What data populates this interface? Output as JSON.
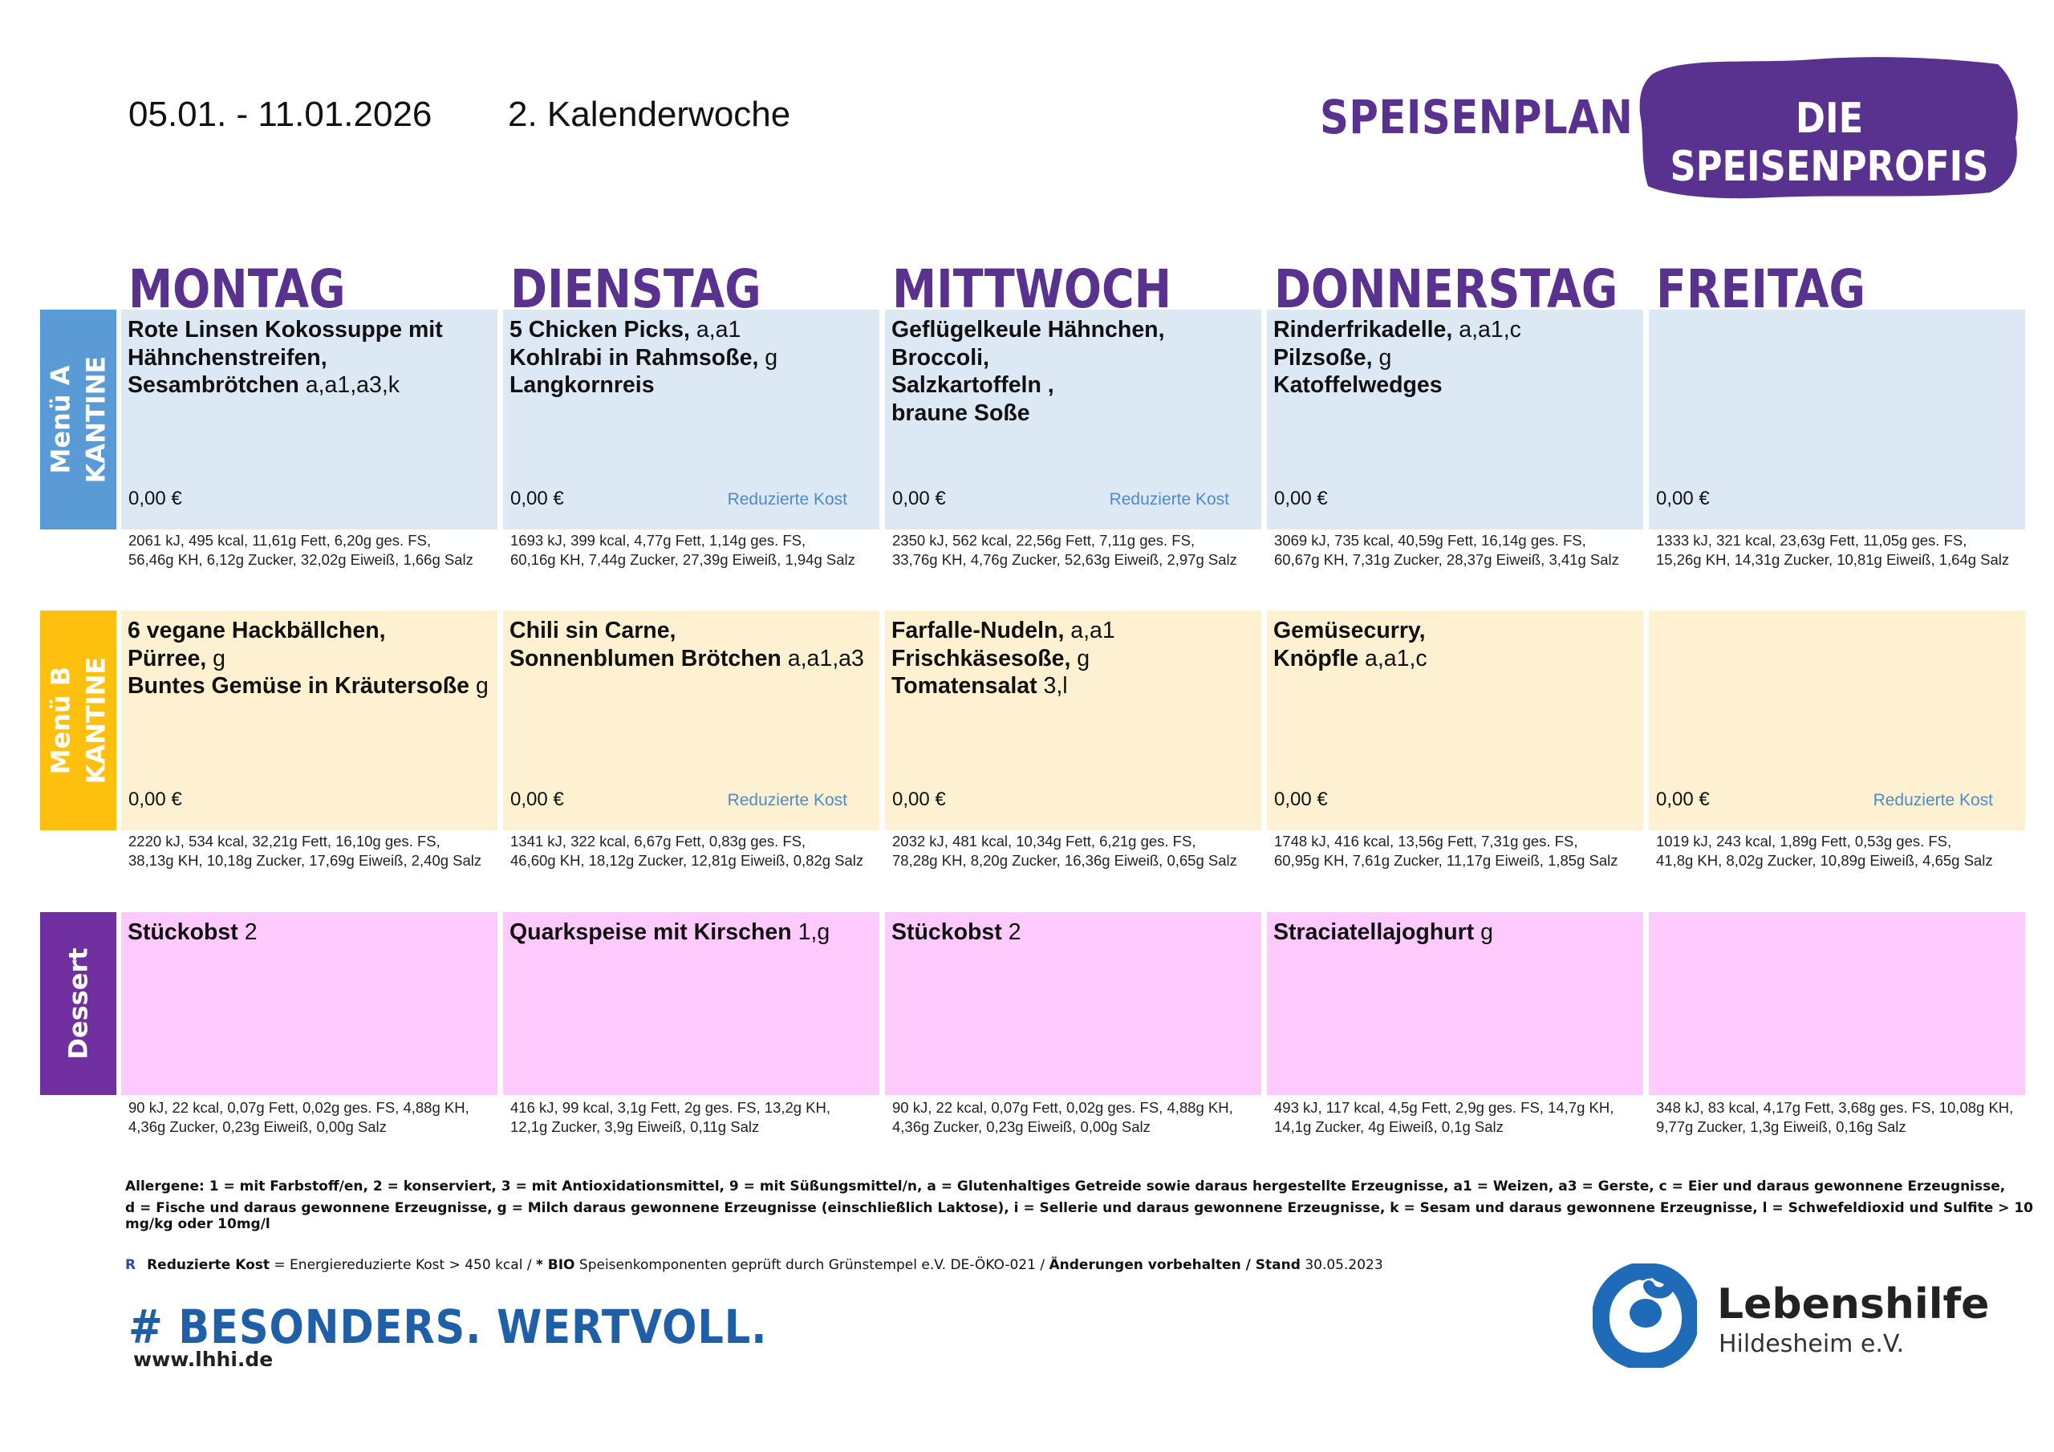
{
  "header": {
    "date_range": "05.01. - 11.01.2026",
    "week": "2. Kalenderwoche",
    "title": "SPEISENPLAN",
    "brand": "DIE SPEISENPROFIS"
  },
  "days": [
    "MONTAG",
    "DIENSTAG",
    "MITTWOCH",
    "DONNERSTAG",
    "FREITAG"
  ],
  "rows": {
    "menu_a": {
      "line1": "Menü A",
      "line2": "KANTINE",
      "color": "#5b9bd5"
    },
    "menu_b": {
      "line1": "Menü B",
      "line2": "KANTINE",
      "color": "#fdc00f"
    },
    "dessert": {
      "line1": "Dessert",
      "color": "#7030a0"
    }
  },
  "menu_a": [
    {
      "lines": [
        {
          "dish": "Rote Linsen Kokossuppe mit",
          "al": ""
        },
        {
          "dish": "Hähnchenstreifen,",
          "al": ""
        },
        {
          "dish": "Sesambrötchen",
          "al": " a,a1,a3,k"
        }
      ],
      "price": "0,00 €",
      "reduced": "",
      "nut1": "2061 kJ, 495 kcal, 11,61g Fett, 6,20g ges. FS,",
      "nut2": "56,46g KH, 6,12g Zucker, 32,02g Eiweiß, 1,66g Salz"
    },
    {
      "lines": [
        {
          "dish": "5 Chicken Picks,",
          "al": " a,a1"
        },
        {
          "dish": "Kohlrabi in Rahmsoße,",
          "al": " g"
        },
        {
          "dish": "Langkornreis",
          "al": ""
        }
      ],
      "price": "0,00 €",
      "reduced": "Reduzierte Kost",
      "nut1": "1693 kJ, 399 kcal, 4,77g Fett, 1,14g ges. FS,",
      "nut2": "60,16g KH, 7,44g Zucker, 27,39g Eiweiß, 1,94g Salz"
    },
    {
      "lines": [
        {
          "dish": "Geflügelkeule  Hähnchen,",
          "al": ""
        },
        {
          "dish": "Broccoli,",
          "al": ""
        },
        {
          "dish": "Salzkartoffeln ,",
          "al": ""
        },
        {
          "dish": "braune Soße",
          "al": ""
        }
      ],
      "price": "0,00 €",
      "reduced": "Reduzierte Kost",
      "nut1": "2350 kJ, 562 kcal, 22,56g Fett, 7,11g ges. FS,",
      "nut2": "33,76g KH, 4,76g Zucker, 52,63g Eiweiß, 2,97g Salz"
    },
    {
      "lines": [
        {
          "dish": "Rinderfrikadelle,",
          "al": " a,a1,c"
        },
        {
          "dish": "Pilzsoße,",
          "al": " g"
        },
        {
          "dish": "Katoffelwedges",
          "al": ""
        }
      ],
      "price": "0,00 €",
      "reduced": "",
      "nut1": "3069 kJ, 735 kcal, 40,59g Fett, 16,14g ges. FS,",
      "nut2": "60,67g KH, 7,31g Zucker, 28,37g Eiweiß, 3,41g Salz"
    },
    {
      "lines": [],
      "price": "0,00 €",
      "reduced": "",
      "nut1": "1333 kJ, 321 kcal, 23,63g Fett, 11,05g ges. FS,",
      "nut2": "15,26g KH, 14,31g Zucker, 10,81g Eiweiß, 1,64g Salz"
    }
  ],
  "menu_b": [
    {
      "lines": [
        {
          "dish": "6 vegane Hackbällchen,",
          "al": ""
        },
        {
          "dish": "Pürree,",
          "al": " g"
        },
        {
          "dish": "Buntes Gemüse in Kräutersoße",
          "al": " g"
        }
      ],
      "price": "0,00 €",
      "reduced": "",
      "nut1": "2220 kJ, 534 kcal, 32,21g Fett, 16,10g ges. FS,",
      "nut2": "38,13g KH, 10,18g Zucker, 17,69g Eiweiß, 2,40g Salz"
    },
    {
      "lines": [
        {
          "dish": "Chili sin Carne,",
          "al": ""
        },
        {
          "dish": "Sonnenblumen Brötchen",
          "al": " a,a1,a3"
        }
      ],
      "price": "0,00 €",
      "reduced": "Reduzierte Kost",
      "nut1": "1341 kJ, 322 kcal, 6,67g Fett, 0,83g ges. FS,",
      "nut2": "46,60g KH, 18,12g Zucker, 12,81g Eiweiß, 0,82g Salz"
    },
    {
      "lines": [
        {
          "dish": "Farfalle-Nudeln,",
          "al": " a,a1"
        },
        {
          "dish": "Frischkäsesoße,",
          "al": " g"
        },
        {
          "dish": "Tomatensalat",
          "al": " 3,l"
        }
      ],
      "price": "0,00 €",
      "reduced": "",
      "nut1": "2032 kJ, 481 kcal, 10,34g Fett, 6,21g ges. FS,",
      "nut2": "78,28g KH, 8,20g Zucker, 16,36g Eiweiß, 0,65g Salz"
    },
    {
      "lines": [
        {
          "dish": "Gemüsecurry,",
          "al": ""
        },
        {
          "dish": "Knöpfle",
          "al": " a,a1,c"
        }
      ],
      "price": "0,00 €",
      "reduced": "",
      "nut1": "1748 kJ, 416 kcal, 13,56g Fett, 7,31g ges. FS,",
      "nut2": "60,95g KH, 7,61g Zucker, 11,17g Eiweiß, 1,85g Salz"
    },
    {
      "lines": [],
      "price": "0,00 €",
      "reduced": "Reduzierte Kost",
      "nut1": "1019 kJ, 243 kcal, 1,89g Fett, 0,53g ges. FS,",
      "nut2": "41,8g KH, 8,02g Zucker, 10,89g Eiweiß, 4,65g Salz"
    }
  ],
  "dessert": [
    {
      "lines": [
        {
          "dish": "Stückobst",
          "al": " 2"
        }
      ],
      "nut1": "90 kJ, 22 kcal, 0,07g Fett, 0,02g ges. FS, 4,88g KH,",
      "nut2": "4,36g Zucker, 0,23g Eiweiß, 0,00g Salz"
    },
    {
      "lines": [
        {
          "dish": "Quarkspeise mit Kirschen",
          "al": " 1,g"
        }
      ],
      "nut1": "416 kJ, 99 kcal, 3,1g Fett, 2g ges. FS, 13,2g KH,",
      "nut2": "12,1g Zucker, 3,9g Eiweiß, 0,11g Salz"
    },
    {
      "lines": [
        {
          "dish": "Stückobst",
          "al": " 2"
        }
      ],
      "nut1": "90 kJ, 22 kcal, 0,07g Fett, 0,02g ges. FS, 4,88g KH,",
      "nut2": "4,36g Zucker, 0,23g Eiweiß, 0,00g Salz"
    },
    {
      "lines": [
        {
          "dish": "Straciatellajoghurt",
          "al": " g"
        }
      ],
      "nut1": "493 kJ, 117 kcal, 4,5g Fett, 2,9g ges. FS, 14,7g KH,",
      "nut2": "14,1g Zucker, 4g Eiweiß, 0,1g Salz"
    },
    {
      "lines": [],
      "nut1": "348 kJ, 83 kcal, 4,17g Fett, 3,68g ges. FS, 10,08g KH,",
      "nut2": "9,77g Zucker, 1,3g Eiweiß, 0,16g Salz"
    }
  ],
  "footer": {
    "allergens1": "Allergene: 1 = mit Farbstoff/en, 2 = konserviert, 3 = mit Antioxidationsmittel, 9 = mit Süßungsmittel/n, a = Glutenhaltiges Getreide sowie daraus hergestellte Erzeugnisse, a1 = Weizen, a3 = Gerste, c = Eier und daraus gewonnene Erzeugnisse,",
    "allergens2": "d = Fische und daraus gewonnene Erzeugnisse, g = Milch daraus gewonnene Erzeugnisse (einschließlich Laktose), i = Sellerie und daraus gewonnene Erzeugnisse, k = Sesam und daraus gewonnene Erzeugnisse, l = Schwefeldioxid und Sulfite > 10 mg/kg oder 10mg/l",
    "r_mark": "R",
    "r_label": "Reduzierte Kost",
    "r_text": " = Energiereduzierte Kost > 450 kcal / ",
    "bio_label": "* BIO",
    "bio_text": " Speisenkomponenten geprüft durch Grünstempel e.V. DE-ÖKO-021 / ",
    "change_label": "Änderungen vorbehalten / Stand",
    "stand_date": " 30.05.2023",
    "slogan": "# BESONDERS. WERTVOLL.",
    "url": "www.lhhi.de",
    "org_name": "Lebenshilfe",
    "org_sub": "Hildesheim e.V."
  },
  "colors": {
    "purple": "#59318f",
    "menu_a_bg": "#dce9f5",
    "menu_b_bg": "#fdf1d2",
    "dessert_bg": "#ffcbff",
    "reduced_text": "#4f8ac9",
    "slogan_blue": "#1f5fa8"
  },
  "icons": {
    "brand_badge": "purple-brush-stroke",
    "org_logo": "lebenshilfe-logo-icon"
  }
}
